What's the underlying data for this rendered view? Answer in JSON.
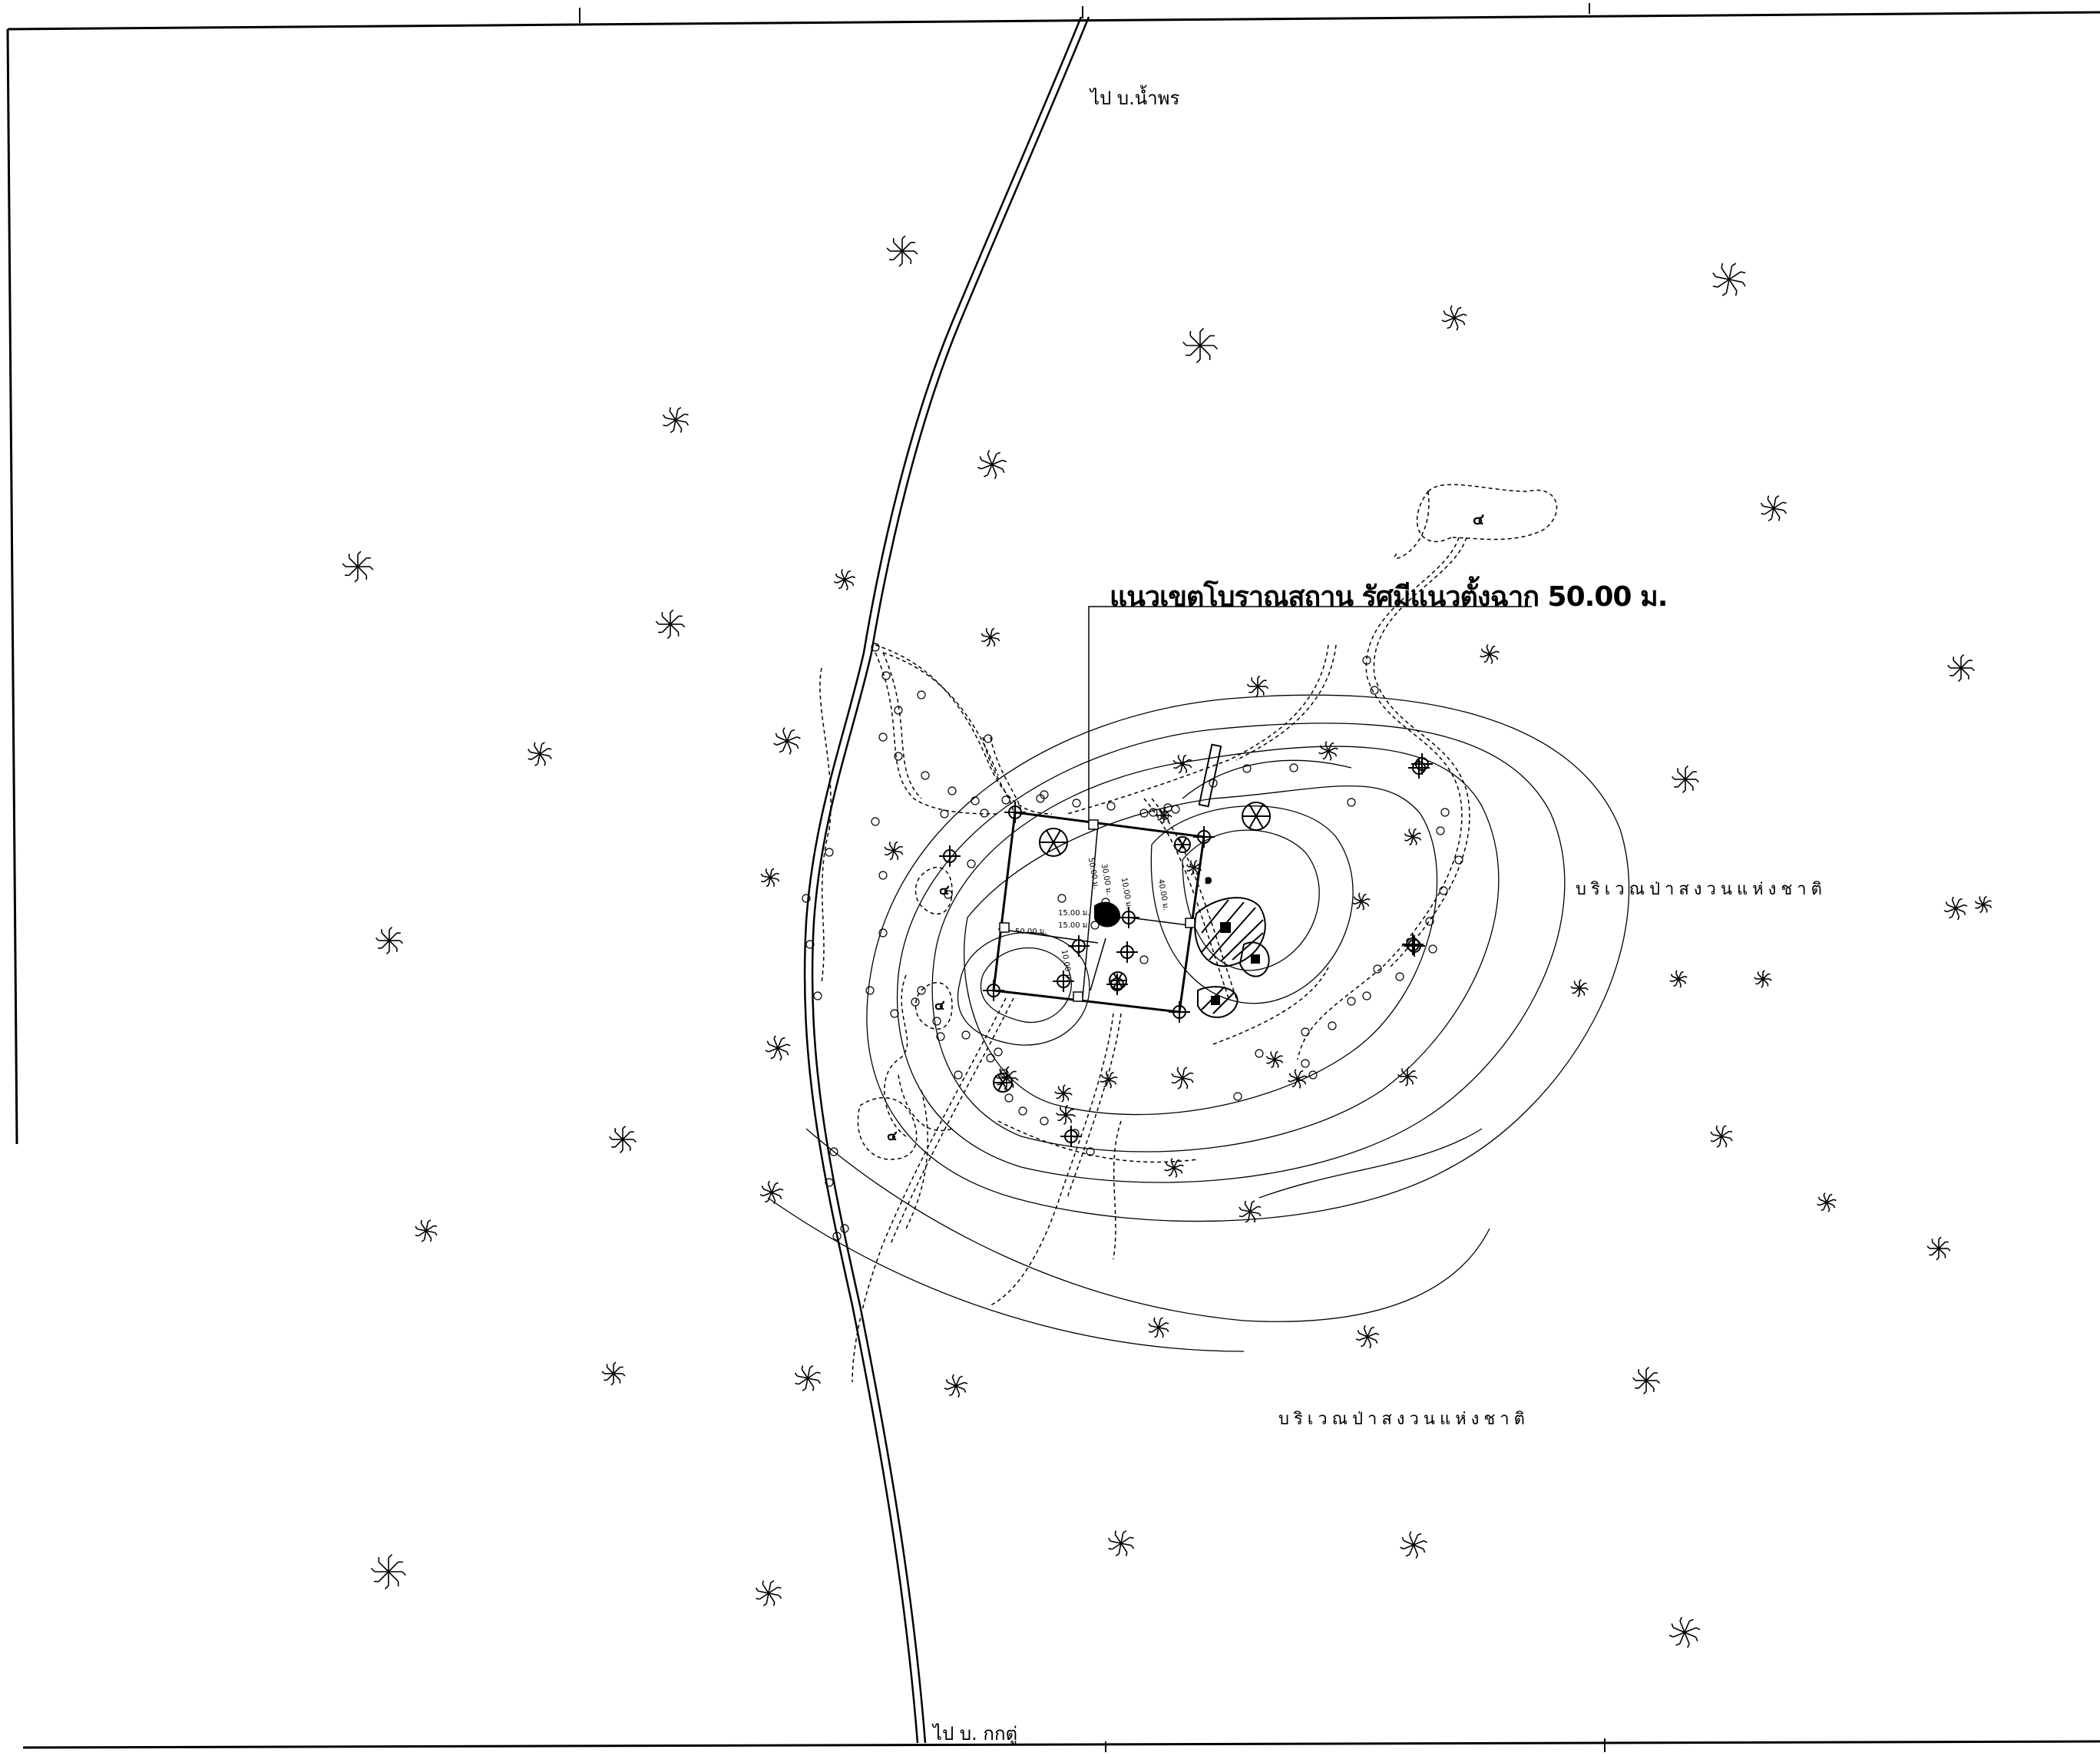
{
  "map": {
    "title_annotation": "แนวเขตโบราณสถาน รัศมีแนวตั้งฉาก 50.00 ม.",
    "road_labels": {
      "north": "ไป บ.น้ำพร",
      "south": "ไป บ. กกตู่"
    },
    "area_labels": {
      "east": "บริเวณป่าสงวนแห่งชาติ",
      "south": "บริเวณป่าสงวนแห่งชาติ"
    },
    "dimension_labels": [
      "50.00 ม.",
      "30.00 ม.",
      "10.00 ม.",
      "40.00 ม.",
      "15.00 ม.",
      "15.00 ม.",
      "50.00 ม.",
      "10.00 ม."
    ],
    "feature_markers": [
      "๔",
      "๑",
      "๔",
      "๔",
      "๔"
    ],
    "icons": [
      "tree-symbol-icon",
      "survey-point-icon",
      "ruin-structure-icon"
    ],
    "colors": {
      "ink": "#000000",
      "paper": "#ffffff"
    }
  }
}
